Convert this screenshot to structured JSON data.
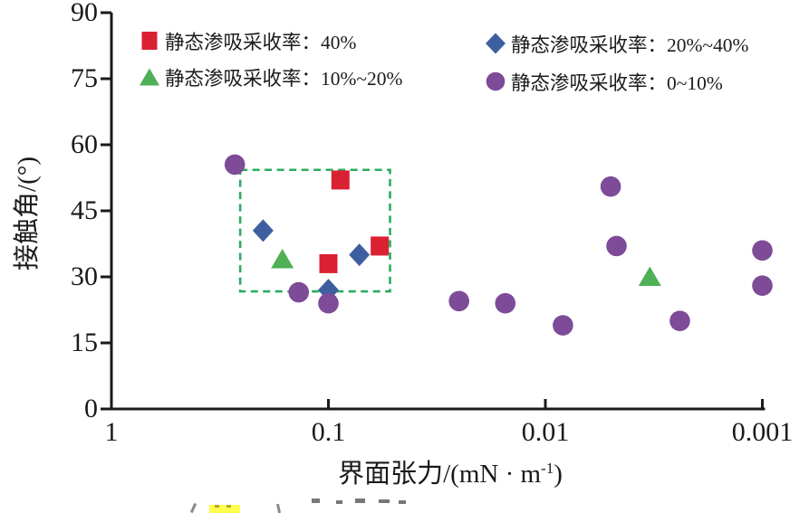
{
  "colors": {
    "axis": "#1a1a1a",
    "red": "#da2132",
    "blue": "#3e5f9f",
    "green": "#4fb056",
    "purple": "#7d4b97",
    "annotation_box": "#2aad5e",
    "caption_highlight": "#ffff4d"
  },
  "chart_data": {
    "type": "scatter",
    "title": "",
    "xlabel": "界面张力/(mN·m⁻¹)",
    "xlabel_parts": {
      "main": "界面张力/(mN · m",
      "sup": "-1",
      "close": ")"
    },
    "ylabel": "接触角/(°)",
    "x_scale": "log-reversed",
    "grid": false,
    "legend_position": "top-inside-two-columns",
    "xlim": [
      1,
      0.001
    ],
    "ylim": [
      0,
      90
    ],
    "x_ticks": [
      {
        "value": 1,
        "label": "1"
      },
      {
        "value": 0.1,
        "label": "0.1"
      },
      {
        "value": 0.01,
        "label": "0.01"
      },
      {
        "value": 0.001,
        "label": "0.001"
      }
    ],
    "y_ticks": [
      {
        "value": 0,
        "label": "0"
      },
      {
        "value": 15,
        "label": "15"
      },
      {
        "value": 30,
        "label": "30"
      },
      {
        "value": 45,
        "label": "45"
      },
      {
        "value": 60,
        "label": "60"
      },
      {
        "value": 75,
        "label": "75"
      },
      {
        "value": 90,
        "label": "90"
      }
    ],
    "series": [
      {
        "name": "静态渗吸采收率：40%",
        "marker": "square",
        "color": "#da2132",
        "points": [
          [
            0.088,
            52
          ],
          [
            0.1,
            33
          ],
          [
            0.058,
            37
          ]
        ]
      },
      {
        "name": "静态渗吸采收率：20%~40%",
        "marker": "diamond",
        "color": "#3e5f9f",
        "points": [
          [
            0.2,
            40.5
          ],
          [
            0.072,
            35
          ],
          [
            0.1,
            27
          ]
        ]
      },
      {
        "name": "静态渗吸采收率：10%~20%",
        "marker": "triangle",
        "color": "#4fb056",
        "points": [
          [
            0.163,
            34
          ],
          [
            0.0033,
            30
          ]
        ]
      },
      {
        "name": "静态渗吸采收率：0~10%",
        "marker": "circle",
        "color": "#7d4b97",
        "points": [
          [
            0.27,
            55.5
          ],
          [
            0.137,
            26.5
          ],
          [
            0.1,
            24
          ],
          [
            0.025,
            24.5
          ],
          [
            0.0153,
            24
          ],
          [
            0.0083,
            19
          ],
          [
            0.005,
            50.5
          ],
          [
            0.0047,
            37
          ],
          [
            0.0024,
            20
          ],
          [
            0.001,
            36
          ],
          [
            0.001,
            28
          ]
        ]
      }
    ],
    "annotation_box": {
      "x_range": [
        0.255,
        0.052
      ],
      "y_range": [
        26.7,
        54.3
      ],
      "style": "dashed",
      "color": "#2aad5e"
    }
  }
}
